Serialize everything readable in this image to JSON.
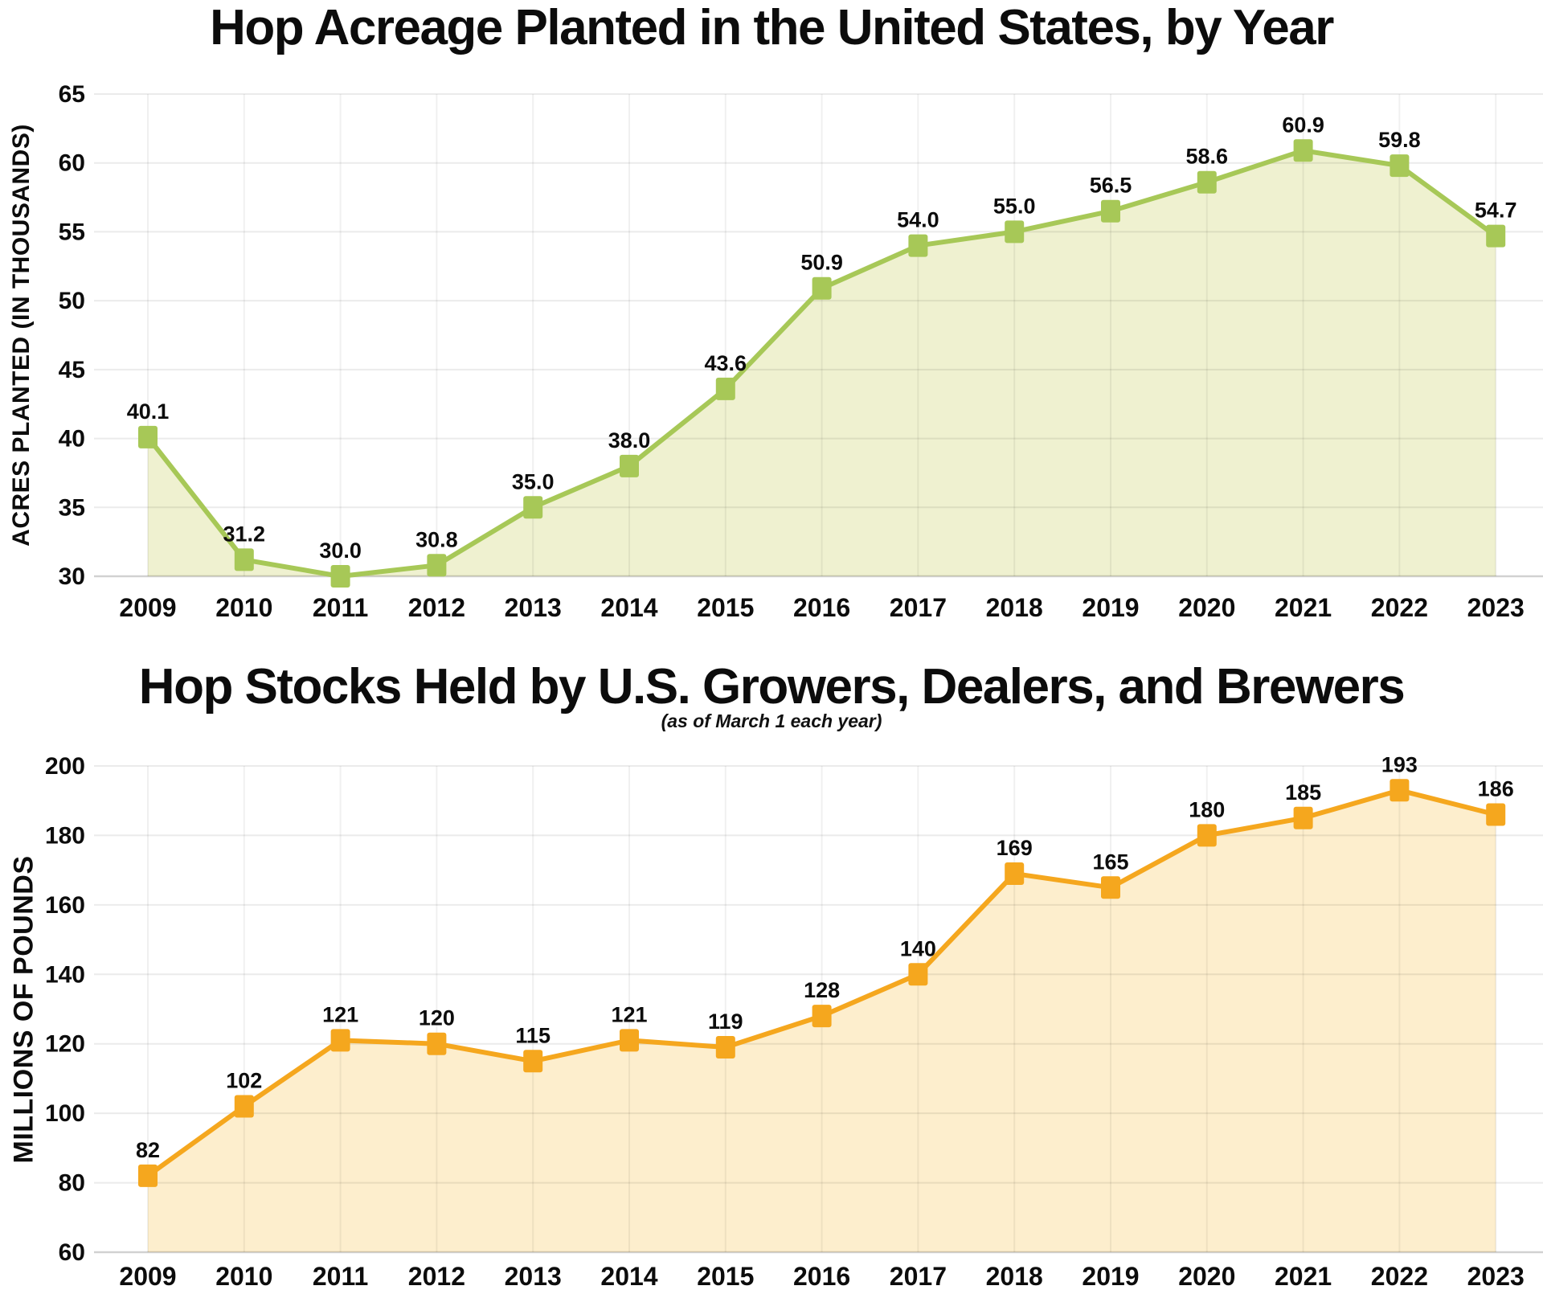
{
  "page": {
    "background": "#ffffff",
    "text_color": "#0c0c0c",
    "gridline_color": "#ebebeb",
    "axis_line_color": "#cccccc"
  },
  "chart_data": [
    {
      "type": "area",
      "title": "Hop Acreage Planted in the United States, by Year",
      "subtitle": "",
      "ylabel": "ACRES PLANTED (IN THOUSANDS)",
      "xlabel": "",
      "categories": [
        "2009",
        "2010",
        "2011",
        "2012",
        "2013",
        "2014",
        "2015",
        "2016",
        "2017",
        "2018",
        "2019",
        "2020",
        "2021",
        "2022",
        "2023"
      ],
      "values": [
        40.1,
        31.2,
        30.0,
        30.8,
        35.0,
        38.0,
        43.6,
        50.9,
        54.0,
        55.0,
        56.5,
        58.6,
        60.9,
        59.8,
        54.7
      ],
      "labels": [
        "40.1",
        "31.2",
        "30.0",
        "30.8",
        "35.0",
        "38.0",
        "43.6",
        "50.9",
        "54.0",
        "55.0",
        "56.5",
        "58.6",
        "60.9",
        "59.8",
        "54.7"
      ],
      "yticks": [
        65,
        60,
        55,
        50,
        45,
        40,
        35,
        30
      ],
      "ylim": [
        30,
        65
      ],
      "grid": true,
      "marker": "square",
      "line_color": "#a7c857",
      "fill_color": "#eff1d0",
      "label_color": "#0c0c0c"
    },
    {
      "type": "area",
      "title": "Hop Stocks Held by U.S. Growers, Dealers, and Brewers",
      "subtitle": "(as of March 1 each year)",
      "ylabel": "MILLIONS OF POUNDS",
      "xlabel": "",
      "categories": [
        "2009",
        "2010",
        "2011",
        "2012",
        "2013",
        "2014",
        "2015",
        "2016",
        "2017",
        "2018",
        "2019",
        "2020",
        "2021",
        "2022",
        "2023"
      ],
      "values": [
        82,
        102,
        121,
        120,
        115,
        121,
        119,
        128,
        140,
        169,
        165,
        180,
        185,
        193,
        186
      ],
      "labels": [
        "82",
        "102",
        "121",
        "120",
        "115",
        "121",
        "119",
        "128",
        "140",
        "169",
        "165",
        "180",
        "185",
        "193",
        "186"
      ],
      "yticks": [
        200,
        180,
        160,
        140,
        120,
        100,
        80,
        60
      ],
      "ylim": [
        60,
        200
      ],
      "grid": true,
      "marker": "square",
      "line_color": "#f5a71e",
      "fill_color": "#fdeecd",
      "label_color": "#0c0c0c"
    }
  ]
}
